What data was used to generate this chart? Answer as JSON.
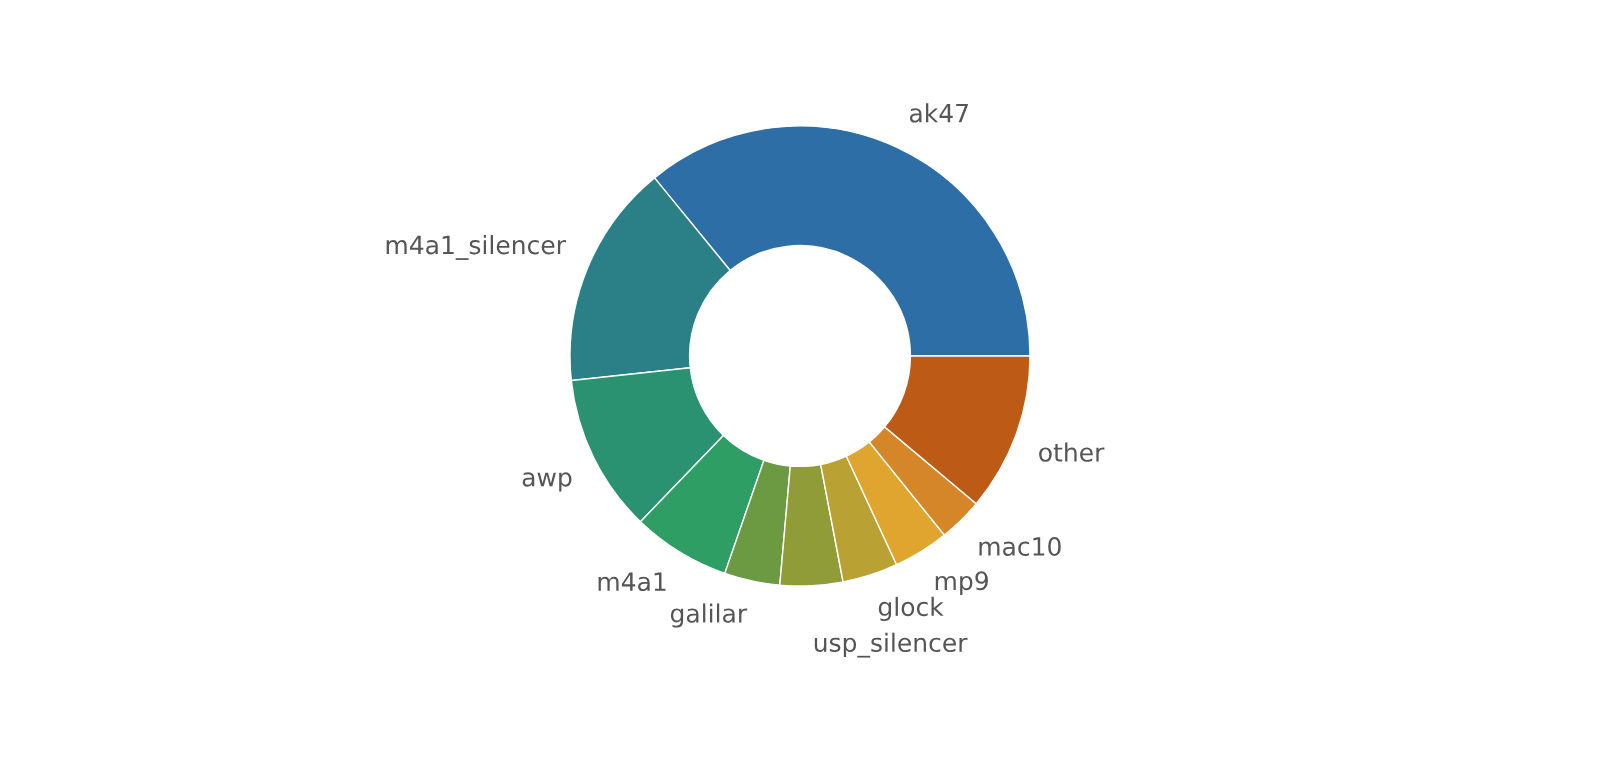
{
  "chart_data": {
    "type": "donut",
    "categories": [
      "ak47",
      "m4a1_silencer",
      "awp",
      "m4a1",
      "galilar",
      "usp_silencer",
      "glock",
      "mp9",
      "mac10",
      "other"
    ],
    "values": [
      35.9,
      15.8,
      11.1,
      6.9,
      3.9,
      4.4,
      3.9,
      3.9,
      3.1,
      11.1
    ],
    "colors": [
      "#2d6ea6",
      "#2b8088",
      "#2a9270",
      "#2e9e64",
      "#6b9a42",
      "#8f9c38",
      "#b9a134",
      "#e0a52e",
      "#d58628",
      "#bc5a16"
    ],
    "legend": false
  }
}
